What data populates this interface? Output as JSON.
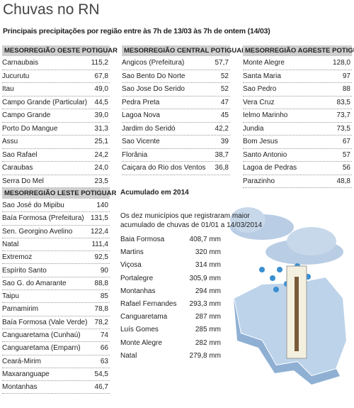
{
  "header": {
    "title": "Chuvas no RN",
    "subtitle": "Principais precipitações por região entre às 7h de 13/03 às 7h de ontem (14/03)"
  },
  "tables": [
    {
      "title": "MESORREGIÃO OESTE POTIGUAR",
      "rows": [
        [
          "Carnaubais",
          "115,2"
        ],
        [
          "Jucurutu",
          "67,8"
        ],
        [
          "Itau",
          "49,0"
        ],
        [
          "Campo Grande (Particular)",
          "44,5"
        ],
        [
          "Campo Grande",
          "39,0"
        ],
        [
          "Porto Do Mangue",
          "31,3"
        ],
        [
          "Assu",
          "25,1"
        ],
        [
          "Sao Rafael",
          "24,2"
        ],
        [
          "Caraubas",
          "24,0"
        ],
        [
          "Serra Do Mel",
          "23,5"
        ]
      ]
    },
    {
      "title": "MESORREGIÃO CENTRAL POTIGUAR",
      "rows": [
        [
          "Angicos (Prefeitura)",
          "57,7"
        ],
        [
          "Sao Bento Do Norte",
          "52"
        ],
        [
          "Sao Jose Do Serido",
          "52"
        ],
        [
          "Pedra Preta",
          "47"
        ],
        [
          "Lagoa Nova",
          "45"
        ],
        [
          "Jardim do Seridó",
          "42,2"
        ],
        [
          "Sao Vicente",
          "39"
        ],
        [
          "Florânia",
          "38,7"
        ],
        [
          "Caiçara do Rio dos Ventos",
          "36,8"
        ]
      ]
    },
    {
      "title": "MESORREGIÃO AGRESTE POTIGUAR",
      "rows": [
        [
          "Monte Alegre",
          "128,0"
        ],
        [
          "Santa Maria",
          "97"
        ],
        [
          "Sao Pedro",
          "88"
        ],
        [
          "Vera Cruz",
          "83,5"
        ],
        [
          "Ielmo Marinho",
          "73,7"
        ],
        [
          "Jundia",
          "73,5"
        ],
        [
          "Bom Jesus",
          "67"
        ],
        [
          "Santo Antonio",
          "57"
        ],
        [
          "Lagoa de Pedras",
          "56"
        ],
        [
          "Parazinho",
          "48,8"
        ]
      ]
    },
    {
      "title": "MESORREGIÃO LESTE POTIGUAR",
      "rows": [
        [
          "Sao José do Mipibu",
          "140"
        ],
        [
          "Baía Formosa (Prefeitura)",
          "131,5"
        ],
        [
          "Sen. Georgino Avelino",
          "122,4"
        ],
        [
          "Natal",
          "111,4"
        ],
        [
          "Extremoz",
          "92,5"
        ],
        [
          "Espírito Santo",
          "90"
        ],
        [
          "Sao G. do Amarante",
          "88,8"
        ],
        [
          "Taipu",
          "85"
        ],
        [
          "Parnamirim",
          "78,8"
        ],
        [
          "Baía Formosa (Vale Verde)",
          "78,2"
        ],
        [
          "Canguaretama (Cunhaú)",
          "74"
        ],
        [
          "Canguaretama (Emparn)",
          "66"
        ],
        [
          "Ceará-Mirim",
          "63"
        ],
        [
          "Maxaranguape",
          "54,5"
        ],
        [
          "Montanhas",
          "46,7"
        ]
      ]
    }
  ],
  "accumulated": {
    "title": "Acumulado em 2014",
    "description": [
      "Os dez municípios que registraram maior",
      "acumulado de chuvas de 01/01 a 14/03/2014"
    ],
    "rows": [
      [
        "Baia Formosa",
        "408,7 mm"
      ],
      [
        "Martins",
        "320 mm"
      ],
      [
        "Viçosa",
        "314 mm"
      ],
      [
        "Portalegre",
        "305,9 mm"
      ],
      [
        "Montanhas",
        "294 mm"
      ],
      [
        "Rafael Fernandes",
        "293,3 mm"
      ],
      [
        "Canguaretama",
        "287 mm"
      ],
      [
        "Luís Gomes",
        "285 mm"
      ],
      [
        "Monte Alegre",
        "282 mm"
      ],
      [
        "Natal",
        "279,8 mm"
      ]
    ]
  }
}
